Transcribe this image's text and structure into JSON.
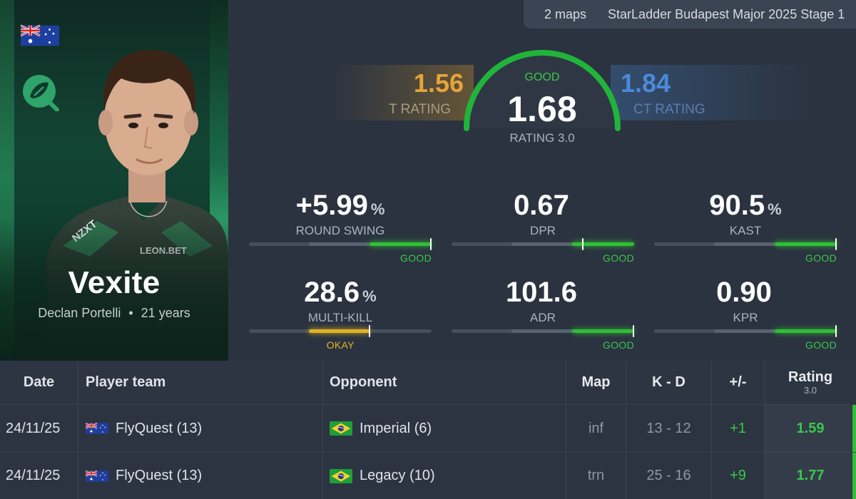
{
  "header": {
    "maps_count": "2 maps",
    "event_name": "StarLadder Budapest Major 2025 Stage 1"
  },
  "player": {
    "nickname": "Vexite",
    "real_name": "Declan Portelli",
    "separator": "•",
    "age": "21 years",
    "flag": "australia-flag",
    "team_logo": "flyquest-logo"
  },
  "rating": {
    "t_value": "1.56",
    "t_label": "T RATING",
    "ct_value": "1.84",
    "ct_label": "CT RATING",
    "status": "GOOD",
    "value": "1.68",
    "label": "RATING 3.0",
    "colors": {
      "t": "#e5a43a",
      "ct": "#4a8ad8",
      "good": "#39c84a",
      "okay": "#e0b323"
    }
  },
  "stats": [
    {
      "value": "+5.99",
      "unit": "%",
      "label": "ROUND SWING",
      "tier": "GOOD",
      "fill_from": 0.66,
      "fill_to": 1.0,
      "marker": 1.0
    },
    {
      "value": "0.67",
      "unit": "",
      "label": "DPR",
      "tier": "GOOD",
      "fill_from": 0.66,
      "fill_to": 1.0,
      "marker": 0.72
    },
    {
      "value": "90.5",
      "unit": "%",
      "label": "KAST",
      "tier": "GOOD",
      "fill_from": 0.66,
      "fill_to": 1.0,
      "marker": 1.0
    },
    {
      "value": "28.6",
      "unit": "%",
      "label": "MULTI-KILL",
      "tier": "OKAY",
      "fill_from": 0.33,
      "fill_to": 0.66,
      "marker": 0.66
    },
    {
      "value": "101.6",
      "unit": "",
      "label": "ADR",
      "tier": "GOOD",
      "fill_from": 0.66,
      "fill_to": 1.0,
      "marker": 1.0
    },
    {
      "value": "0.90",
      "unit": "",
      "label": "KPR",
      "tier": "GOOD",
      "fill_from": 0.66,
      "fill_to": 1.0,
      "marker": 1.0
    }
  ],
  "table": {
    "headers": {
      "date": "Date",
      "player_team": "Player team",
      "opponent": "Opponent",
      "map": "Map",
      "kd": "K - D",
      "diff": "+/-",
      "rating": "Rating",
      "rating_sub": "3.0"
    },
    "rows": [
      {
        "date": "24/11/25",
        "team": "FlyQuest (13)",
        "team_flag": "australia-flag",
        "opponent": "Imperial (6)",
        "opponent_flag": "brazil-flag",
        "map": "inf",
        "kd": "13 - 12",
        "diff": "+1",
        "rating": "1.59"
      },
      {
        "date": "24/11/25",
        "team": "FlyQuest (13)",
        "team_flag": "australia-flag",
        "opponent": "Legacy (10)",
        "opponent_flag": "brazil-flag",
        "map": "trn",
        "kd": "25 - 16",
        "diff": "+9",
        "rating": "1.77"
      }
    ]
  }
}
